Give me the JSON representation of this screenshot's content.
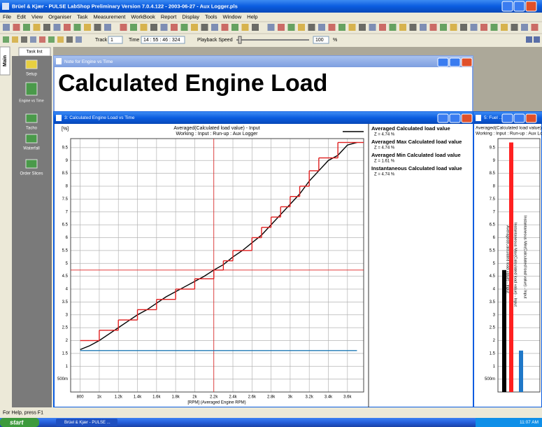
{
  "window": {
    "title": "Brüel & Kjær - PULSE LabShop Preliminary Version 7.0.4.122 - 2003-06-27 - Aux Logger.pls"
  },
  "menu": [
    "File",
    "Edit",
    "View",
    "Organiser",
    "Task",
    "Measurement",
    "WorkBook",
    "Report",
    "Display",
    "Tools",
    "Window",
    "Help"
  ],
  "toolbar": {
    "track_label": "Track",
    "track_value": "1",
    "time_label": "Time",
    "time_value": "14 : 55 : 46 : 324",
    "playback_label": "Playback Speed",
    "playback_value": "100",
    "playback_unit": "%"
  },
  "sidebar": {
    "tabs": [
      "Main",
      "Task list"
    ],
    "items": [
      "Setup",
      "Engine vs Time",
      "Tacho",
      "Waterfall",
      "Order Slices"
    ]
  },
  "note_window": {
    "title": "Note for Engine vs Time",
    "text": "Calculated Engine Load"
  },
  "chart_window": {
    "title": "3: Calculated Engine Load vs Time"
  },
  "fuel_window": {
    "title": "5: Fuel ..."
  },
  "chart_data": [
    {
      "type": "line",
      "title": "Averaged(Calculated load value) - Input",
      "subtitle": "Working : Input : Run-up : Aux Logger",
      "y_label": "[%]",
      "x_label": "[RPM] (Averaged Engine RPM)",
      "x": [
        800,
        900,
        1000,
        1100,
        1200,
        1300,
        1400,
        1500,
        1600,
        1700,
        1800,
        1900,
        2000,
        2100,
        2200,
        2300,
        2400,
        2500,
        2600,
        2700,
        2800,
        2900,
        3000,
        3100,
        3200,
        3300,
        3400,
        3500,
        3600,
        3700
      ],
      "series": [
        {
          "color": "#000000",
          "style": "line",
          "values": [
            1.65,
            1.8,
            2.0,
            2.25,
            2.5,
            2.75,
            3.0,
            3.2,
            3.45,
            3.7,
            3.9,
            4.1,
            4.3,
            4.5,
            4.74,
            4.95,
            5.25,
            5.5,
            5.8,
            6.1,
            6.5,
            6.9,
            7.3,
            7.7,
            8.2,
            8.6,
            9.0,
            9.2,
            9.6,
            9.7
          ]
        },
        {
          "color": "#e02020",
          "style": "step",
          "values": [
            2.0,
            2.0,
            2.4,
            2.4,
            2.8,
            2.8,
            3.2,
            3.2,
            3.6,
            3.6,
            4.0,
            4.0,
            4.4,
            4.4,
            4.74,
            5.1,
            5.5,
            5.5,
            6.0,
            6.4,
            6.8,
            7.2,
            7.6,
            8.0,
            8.6,
            9.1,
            9.1,
            9.7,
            9.7,
            9.7
          ]
        },
        {
          "color": "#1f78b4",
          "style": "line",
          "values": [
            1.61,
            1.61,
            1.61,
            1.61,
            1.61,
            1.61,
            1.61,
            1.61,
            1.61,
            1.61,
            1.61,
            1.61,
            1.61,
            1.61,
            1.61,
            1.61,
            1.61,
            1.61,
            1.61,
            1.61,
            1.61,
            1.61,
            1.61,
            1.61,
            1.61,
            1.61,
            1.61,
            1.61,
            1.61,
            1.61
          ]
        }
      ],
      "cursor": {
        "x": 2200,
        "y": 4.74,
        "color": "#e02020"
      },
      "readouts": [
        {
          "name": "Averaged Calculated load value",
          "value": "Z = 4.74 %"
        },
        {
          "name": "Averaged Max Calculated load value",
          "value": "Z = 4.74 %"
        },
        {
          "name": "Averaged Min Calculated load value",
          "value": "Z = 1.61 %"
        },
        {
          "name": "Instantaneous Calculated load value",
          "value": "Z = 4.74 %"
        }
      ],
      "xlim": [
        700,
        3770
      ],
      "xticks": [
        800,
        {
          "value": 1000,
          "label": "1k"
        },
        {
          "value": 1200,
          "label": "1.2k"
        },
        {
          "value": 1400,
          "label": "1.4k"
        },
        {
          "value": 1600,
          "label": "1.6k"
        },
        {
          "value": 1800,
          "label": "1.8k"
        },
        {
          "value": 2000,
          "label": "2k"
        },
        {
          "value": 2200,
          "label": "2.2k"
        },
        {
          "value": 2400,
          "label": "2.4k"
        },
        {
          "value": 2600,
          "label": "2.6k"
        },
        {
          "value": 2800,
          "label": "2.8k"
        },
        {
          "value": 3000,
          "label": "3k"
        },
        {
          "value": 3200,
          "label": "3.2k"
        },
        {
          "value": 3400,
          "label": "3.4k"
        },
        {
          "value": 3600,
          "label": "3.6k"
        }
      ],
      "ylim": [
        0,
        9.85
      ],
      "yticks": [
        {
          "value": 0.5,
          "label": "500m"
        },
        1,
        1.5,
        2,
        2.5,
        3,
        3.5,
        4,
        4.5,
        5,
        5.5,
        6,
        6.5,
        7,
        7.5,
        8,
        8.5,
        9,
        9.5
      ],
      "grid": true
    },
    {
      "type": "bar",
      "title": "Averaged(Calculated load value) - Input",
      "subtitle": "Working : Input : Run-up : Aux Logger",
      "categories": [
        "Averaged(Calculated load value) - Input",
        "Instantaneous Max(Calculated load value) - Input",
        "Instantaneous Min(Calculated load value) - Input"
      ],
      "values": [
        4.74,
        9.7,
        1.61
      ],
      "colors": [
        "#000000",
        "#ff2020",
        "#1f78c8"
      ],
      "ylim": [
        0,
        9.85
      ],
      "yticks": [
        {
          "value": 0.5,
          "label": "500m"
        },
        1,
        1.5,
        2,
        2.5,
        3,
        3.5,
        4,
        4.5,
        5,
        5.5,
        6,
        6.5,
        7,
        7.5,
        8,
        8.5,
        9,
        9.5
      ],
      "grid": true
    }
  ],
  "status": "For Help, press F1",
  "taskbar": {
    "start": "start",
    "task": "Brüel & Kjær - PULSE ...",
    "clock": "11:07 AM"
  }
}
